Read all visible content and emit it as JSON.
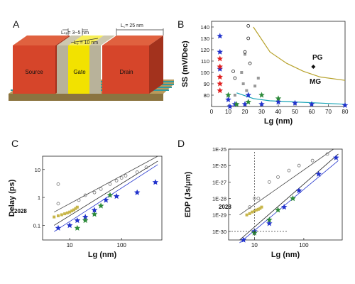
{
  "panel_labels": {
    "a": "A",
    "b": "B",
    "c": "C",
    "d": "D"
  },
  "device": {
    "source_label": "Source",
    "gate_label": "Gate",
    "drain_label": "Drain",
    "lsp_label": "Lₛₚ= 3~5 nm",
    "lg_label": "L₉ = 10 nm",
    "lc_label": "L꜀= 25 nm",
    "colors": {
      "source_drain": "#d6452a",
      "gate": "#f2e200",
      "spacer": "#b8b29a",
      "substrate": "#b79a5c",
      "fins": "#3aa3a8"
    }
  },
  "chart_data": [
    {
      "id": "B",
      "type": "scatter",
      "title": "",
      "xlabel": "Lg (nm)",
      "ylabel": "SS (mV/Dec)",
      "xlim": [
        0,
        80
      ],
      "ylim": [
        70,
        145
      ],
      "xticks": [
        "0",
        "10",
        "20",
        "30",
        "40",
        "50",
        "60",
        "70",
        "80"
      ],
      "yticks": [
        "80",
        "90",
        "100",
        "110",
        "120",
        "130",
        "140"
      ],
      "annotations": [
        "PG",
        "MG"
      ],
      "series": [
        {
          "color": "#2233cc",
          "marker": "star",
          "points": [
            [
              5,
              132
            ],
            [
              5,
              118
            ],
            [
              5,
              103
            ],
            [
              10,
              76
            ],
            [
              11,
              70
            ],
            [
              14,
              72
            ],
            [
              20,
              72
            ],
            [
              22,
              80
            ],
            [
              30,
              72
            ],
            [
              40,
              74
            ],
            [
              50,
              73
            ],
            [
              60,
              72
            ],
            [
              80,
              71
            ]
          ]
        },
        {
          "color": "#e02020",
          "marker": "star",
          "points": [
            [
              5,
              112
            ],
            [
              5,
              105
            ],
            [
              5,
              96
            ],
            [
              5,
              90
            ],
            [
              5,
              84
            ]
          ]
        },
        {
          "color": "#2d8a3a",
          "marker": "star",
          "points": [
            [
              10,
              80
            ],
            [
              15,
              72
            ],
            [
              22,
              74
            ],
            [
              30,
              80
            ],
            [
              40,
              77
            ]
          ]
        },
        {
          "color": "#999999",
          "marker": "square",
          "points": [
            [
              14,
              80
            ],
            [
              18,
              100
            ],
            [
              19,
              90
            ],
            [
              20,
              116
            ],
            [
              21,
              84
            ],
            [
              26,
              88
            ],
            [
              28,
              95
            ]
          ]
        },
        {
          "color": "#222222",
          "marker": "open",
          "points": [
            [
              13,
              101
            ],
            [
              14,
              95
            ],
            [
              20,
              118
            ],
            [
              22,
              141
            ],
            [
              22,
              130
            ],
            [
              23,
              108
            ]
          ]
        },
        {
          "color": "#111111",
          "marker": "diamond",
          "points": [
            [
              61,
              105
            ]
          ]
        }
      ],
      "fits": [
        {
          "name": "PG",
          "color": "#b7a22c",
          "points": [
            [
              25,
              140
            ],
            [
              35,
              118
            ],
            [
              45,
              108
            ],
            [
              55,
              101
            ],
            [
              65,
              96
            ],
            [
              80,
              93
            ]
          ]
        },
        {
          "name": "MG",
          "color": "#17a3b5",
          "points": [
            [
              15,
              82
            ],
            [
              25,
              77
            ],
            [
              35,
              75
            ],
            [
              50,
              74
            ],
            [
              65,
              73
            ],
            [
              80,
              72
            ]
          ]
        }
      ]
    },
    {
      "id": "C",
      "type": "scatter",
      "title": "",
      "xlabel": "Lg (nm)",
      "ylabel": "Delay (ps)",
      "xscale": "log",
      "yscale": "log",
      "xlim": [
        3,
        600
      ],
      "ylim": [
        0.03,
        30
      ],
      "xticks": [
        "10",
        "100"
      ],
      "yticks": [
        "0.1",
        "1",
        "10"
      ],
      "annotations": [
        "2028"
      ],
      "series": [
        {
          "color": "#2233cc",
          "marker": "star",
          "points": [
            [
              6,
              0.08
            ],
            [
              10,
              0.1
            ],
            [
              14,
              0.15
            ],
            [
              20,
              0.2
            ],
            [
              30,
              0.35
            ],
            [
              50,
              0.8
            ],
            [
              80,
              1.1
            ],
            [
              200,
              1.5
            ],
            [
              450,
              3.5
            ]
          ]
        },
        {
          "color": "#2d8a3a",
          "marker": "star",
          "points": [
            [
              14,
              0.08
            ],
            [
              20,
              0.15
            ],
            [
              30,
              0.25
            ],
            [
              40,
              0.5
            ],
            [
              60,
              1.2
            ]
          ]
        },
        {
          "color": "#c8b64a",
          "marker": "square",
          "points": [
            [
              5,
              0.2
            ],
            [
              6,
              0.22
            ],
            [
              7,
              0.24
            ],
            [
              8,
              0.26
            ],
            [
              9,
              0.28
            ],
            [
              10,
              0.3
            ],
            [
              11,
              0.33
            ],
            [
              12,
              0.36
            ],
            [
              13,
              0.4
            ],
            [
              14,
              0.45
            ]
          ]
        },
        {
          "color": "#777777",
          "marker": "open",
          "points": [
            [
              6,
              3
            ],
            [
              6,
              0.6
            ],
            [
              15,
              0.8
            ],
            [
              20,
              1.2
            ],
            [
              30,
              1.5
            ],
            [
              40,
              2
            ],
            [
              60,
              3
            ],
            [
              80,
              4
            ],
            [
              100,
              5
            ],
            [
              120,
              6
            ],
            [
              200,
              8
            ],
            [
              300,
              12
            ]
          ]
        }
      ]
    },
    {
      "id": "D",
      "type": "scatter",
      "title": "",
      "xlabel": "Lg (nm)",
      "ylabel": "EDP (Js/μm)",
      "xscale": "log",
      "yscale": "log",
      "xlim": [
        3,
        600
      ],
      "ylim": [
        3e-31,
        1e-25
      ],
      "xticks": [
        "10",
        "100"
      ],
      "yticks": [
        "1E-30",
        "1E-29",
        "1E-28",
        "1E-27",
        "1E-26",
        "1E-25"
      ],
      "annotations": [
        "2028"
      ],
      "series": [
        {
          "color": "#2233cc",
          "marker": "star",
          "points": [
            [
              6,
              3e-31
            ],
            [
              10,
              1e-30
            ],
            [
              20,
              3e-30
            ],
            [
              40,
              3e-29
            ],
            [
              80,
              3e-28
            ],
            [
              200,
              3e-27
            ],
            [
              450,
              3e-26
            ]
          ]
        },
        {
          "color": "#2d8a3a",
          "marker": "star",
          "points": [
            [
              10,
              8e-31
            ],
            [
              20,
              5e-30
            ],
            [
              30,
              2e-29
            ],
            [
              60,
              1e-28
            ]
          ]
        },
        {
          "color": "#c8b64a",
          "marker": "square",
          "points": [
            [
              7,
              1e-29
            ],
            [
              8,
              1.2e-29
            ],
            [
              9,
              1.5e-29
            ],
            [
              10,
              1.7e-29
            ],
            [
              11,
              2e-29
            ],
            [
              12,
              2.2e-29
            ],
            [
              13,
              2.5e-29
            ],
            [
              14,
              3e-29
            ]
          ]
        },
        {
          "color": "#777777",
          "marker": "open",
          "points": [
            [
              8,
              3e-29
            ],
            [
              10,
              1e-28
            ],
            [
              12,
              1e-28
            ],
            [
              20,
              1e-27
            ],
            [
              30,
              2e-27
            ],
            [
              50,
              5e-27
            ],
            [
              80,
              1e-26
            ],
            [
              150,
              2e-26
            ],
            [
              300,
              5e-26
            ]
          ]
        }
      ]
    }
  ]
}
